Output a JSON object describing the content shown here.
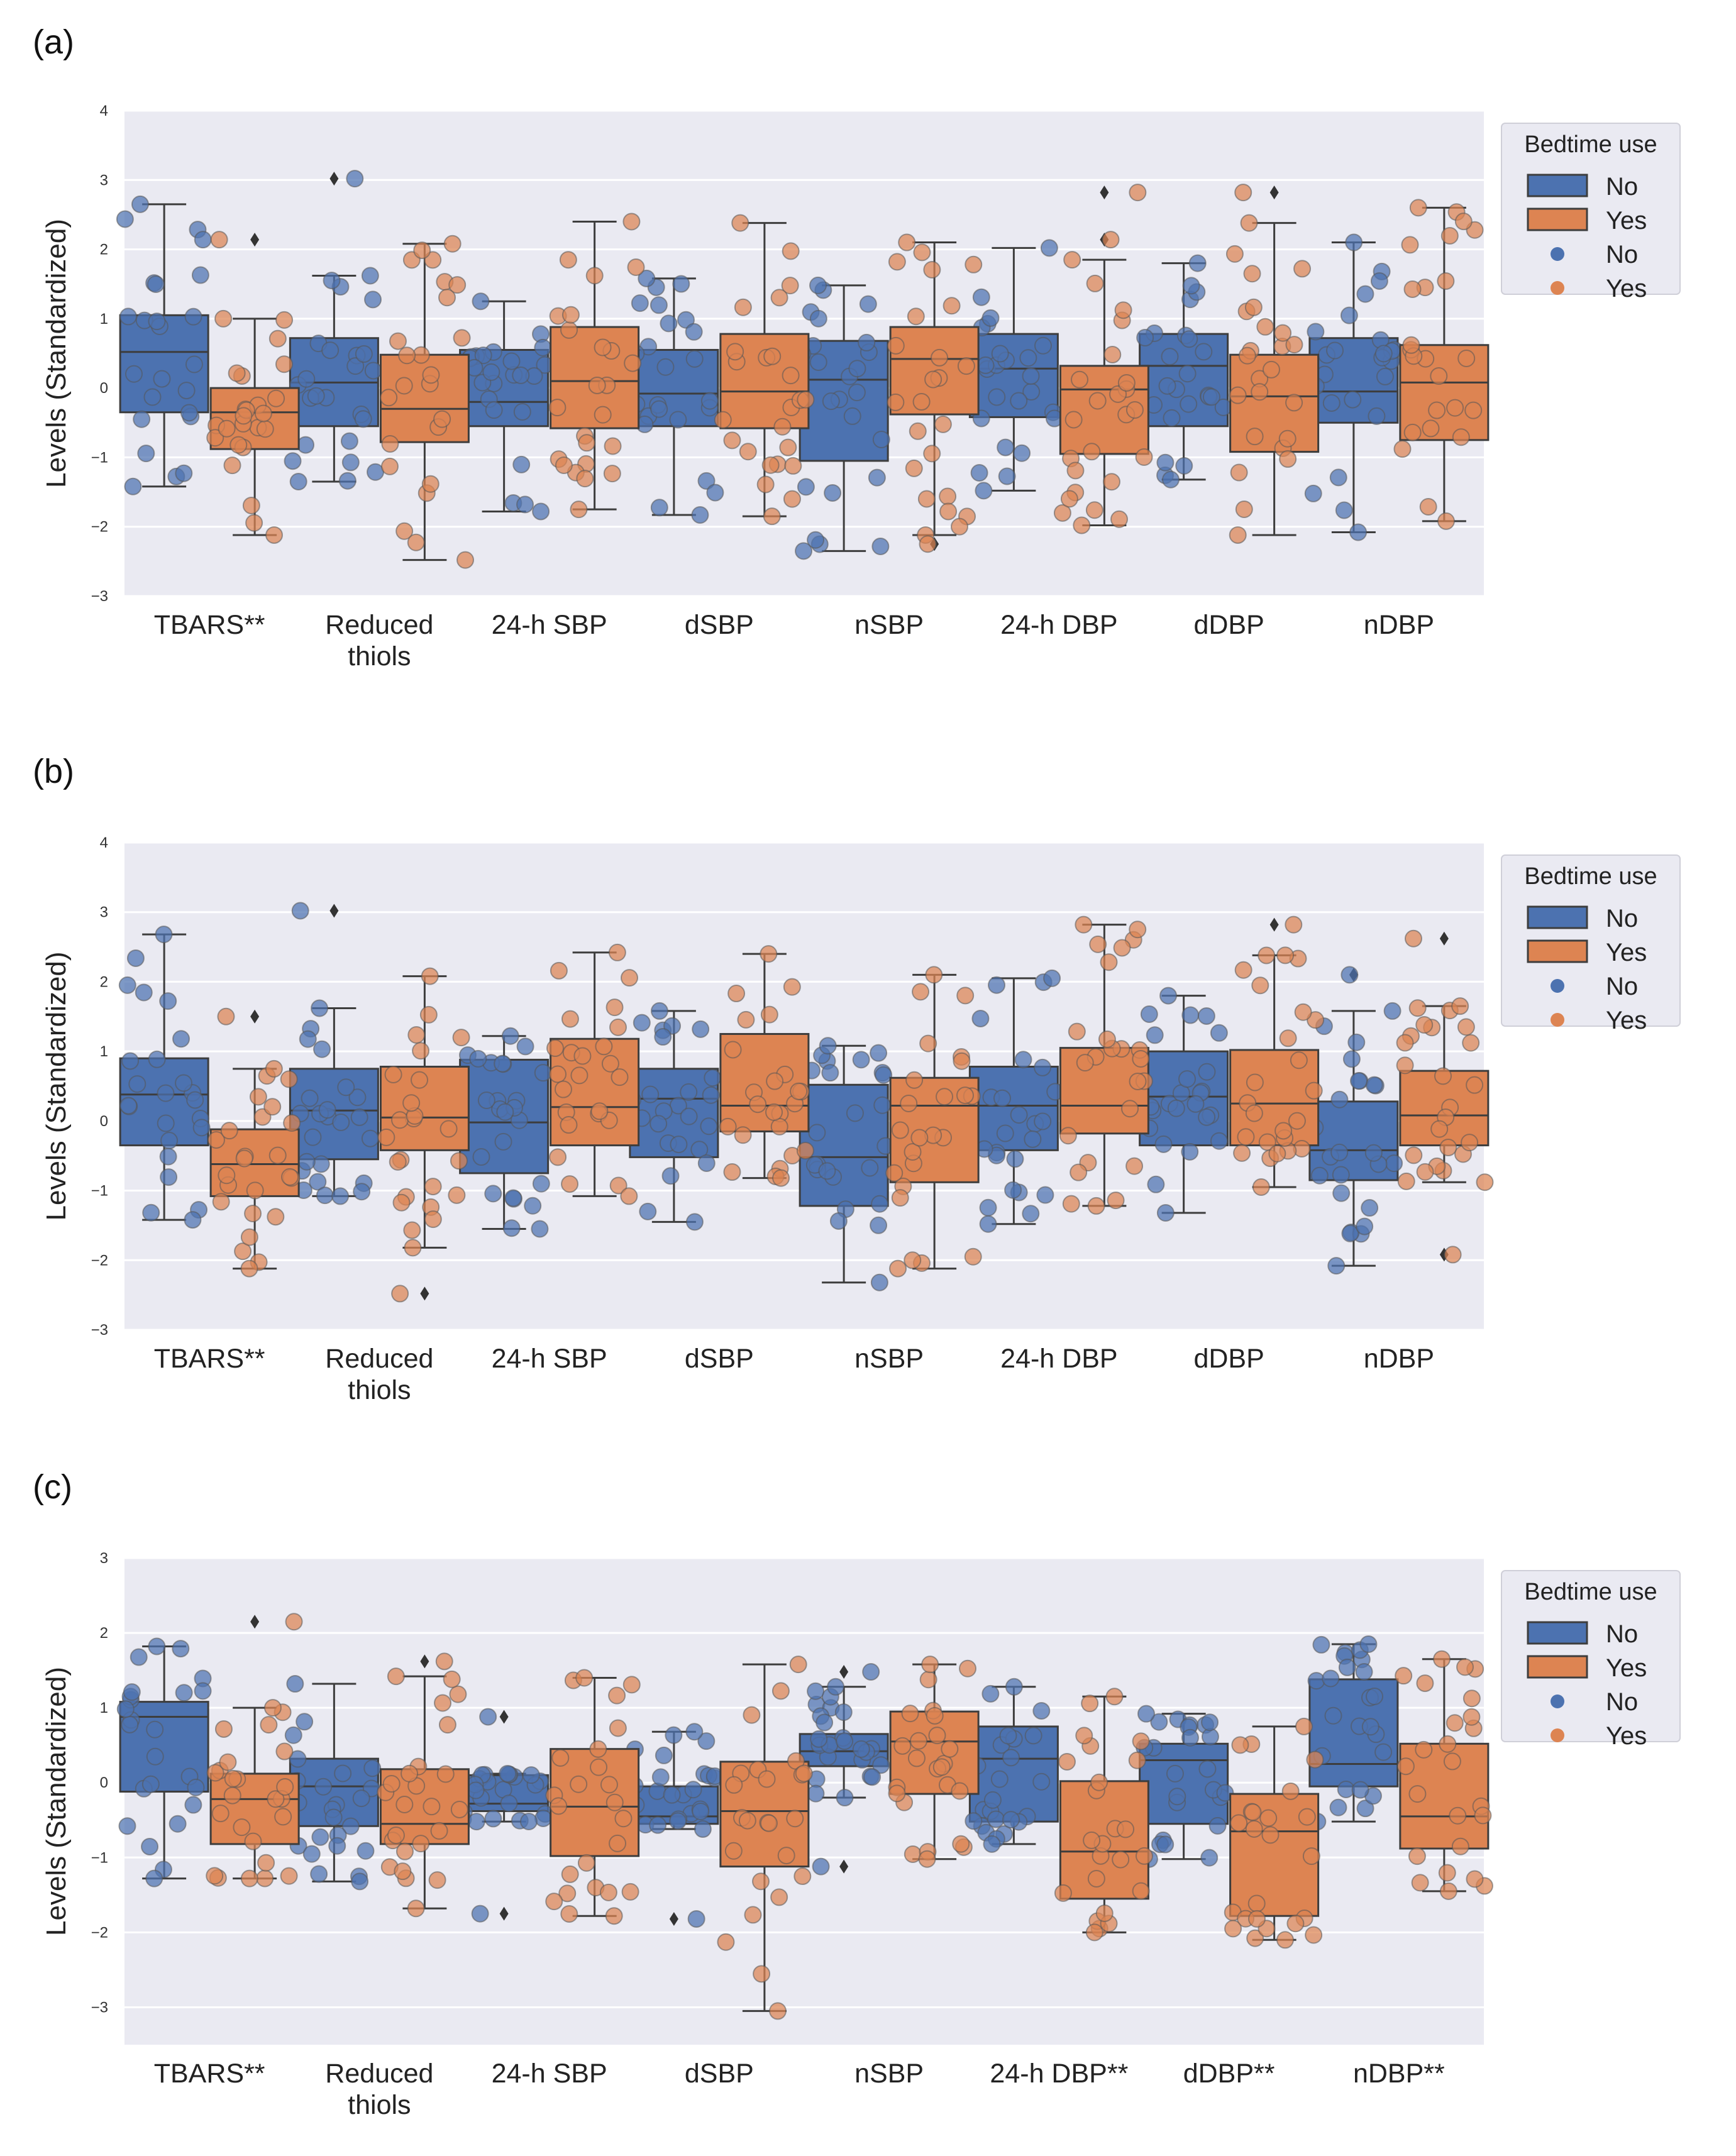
{
  "figure": {
    "legend_title": "Bedtime use",
    "legend_no": "No",
    "legend_yes": "Yes"
  },
  "colors": {
    "no": "#4c72b0",
    "yes": "#dd8452",
    "panel_bg": "#eaeaf2",
    "grid": "#ffffff",
    "line": "#3d3d3d"
  },
  "chart_data": [
    {
      "panel_label": "(a)",
      "type": "box",
      "ylabel": "Levels (Standardized)",
      "ylim": [
        -3,
        4
      ],
      "yticks": [
        4,
        3,
        2,
        1,
        0,
        -1,
        -2,
        -3
      ],
      "categories": [
        "TBARS**",
        "Reduced\nthiols",
        "24-h SBP",
        "dSBP",
        "nSBP",
        "24-h DBP",
        "dDBP",
        "nDBP"
      ],
      "series": [
        {
          "name": "No",
          "boxes": [
            {
              "q1": -0.35,
              "median": 0.52,
              "q3": 1.05,
              "whislo": -1.42,
              "whishi": 2.65,
              "fliers": []
            },
            {
              "q1": -0.55,
              "median": 0.08,
              "q3": 0.72,
              "whislo": -1.35,
              "whishi": 1.62,
              "fliers": [
                3.02
              ]
            },
            {
              "q1": -0.55,
              "median": -0.2,
              "q3": 0.55,
              "whislo": -1.78,
              "whishi": 1.25,
              "fliers": []
            },
            {
              "q1": -0.55,
              "median": -0.08,
              "q3": 0.55,
              "whislo": -1.83,
              "whishi": 1.58,
              "fliers": []
            },
            {
              "q1": -1.05,
              "median": 0.12,
              "q3": 0.68,
              "whislo": -2.35,
              "whishi": 1.48,
              "fliers": []
            },
            {
              "q1": -0.42,
              "median": 0.28,
              "q3": 0.78,
              "whislo": -1.48,
              "whishi": 2.02,
              "fliers": []
            },
            {
              "q1": -0.55,
              "median": 0.32,
              "q3": 0.78,
              "whislo": -1.32,
              "whishi": 1.8,
              "fliers": []
            },
            {
              "q1": -0.5,
              "median": -0.05,
              "q3": 0.72,
              "whislo": -2.08,
              "whishi": 2.1,
              "fliers": []
            }
          ]
        },
        {
          "name": "Yes",
          "boxes": [
            {
              "q1": -0.88,
              "median": -0.35,
              "q3": 0.0,
              "whislo": -2.12,
              "whishi": 1.0,
              "fliers": [
                2.14
              ]
            },
            {
              "q1": -0.78,
              "median": -0.3,
              "q3": 0.48,
              "whislo": -2.48,
              "whishi": 2.08,
              "fliers": []
            },
            {
              "q1": -0.58,
              "median": 0.1,
              "q3": 0.88,
              "whislo": -1.75,
              "whishi": 2.4,
              "fliers": []
            },
            {
              "q1": -0.58,
              "median": -0.05,
              "q3": 0.78,
              "whislo": -1.85,
              "whishi": 2.38,
              "fliers": []
            },
            {
              "q1": -0.38,
              "median": 0.42,
              "q3": 0.88,
              "whislo": -2.12,
              "whishi": 2.1,
              "fliers": [
                -2.25
              ]
            },
            {
              "q1": -0.95,
              "median": -0.02,
              "q3": 0.32,
              "whislo": -1.98,
              "whishi": 1.85,
              "fliers": [
                2.14,
                2.82
              ]
            },
            {
              "q1": -0.92,
              "median": -0.12,
              "q3": 0.48,
              "whislo": -2.12,
              "whishi": 2.38,
              "fliers": [
                2.82
              ]
            },
            {
              "q1": -0.75,
              "median": 0.08,
              "q3": 0.62,
              "whislo": -1.92,
              "whishi": 2.6,
              "fliers": []
            }
          ]
        }
      ]
    },
    {
      "panel_label": "(b)",
      "type": "box",
      "ylabel": "Levels (Standardized)",
      "ylim": [
        -3,
        4
      ],
      "yticks": [
        4,
        3,
        2,
        1,
        0,
        -1,
        -2,
        -3
      ],
      "categories": [
        "TBARS**",
        "Reduced\nthiols",
        "24-h SBP",
        "dSBP",
        "nSBP",
        "24-h DBP",
        "dDBP",
        "nDBP"
      ],
      "series": [
        {
          "name": "No",
          "boxes": [
            {
              "q1": -0.35,
              "median": 0.38,
              "q3": 0.9,
              "whislo": -1.42,
              "whishi": 2.68,
              "fliers": []
            },
            {
              "q1": -0.55,
              "median": 0.15,
              "q3": 0.75,
              "whislo": -1.08,
              "whishi": 1.62,
              "fliers": [
                3.02
              ]
            },
            {
              "q1": -0.75,
              "median": -0.02,
              "q3": 0.88,
              "whislo": -1.55,
              "whishi": 1.22,
              "fliers": []
            },
            {
              "q1": -0.52,
              "median": 0.32,
              "q3": 0.75,
              "whislo": -1.45,
              "whishi": 1.58,
              "fliers": []
            },
            {
              "q1": -1.22,
              "median": -0.52,
              "q3": 0.52,
              "whislo": -2.32,
              "whishi": 1.08,
              "fliers": []
            },
            {
              "q1": -0.42,
              "median": 0.22,
              "q3": 0.78,
              "whislo": -1.48,
              "whishi": 2.05,
              "fliers": []
            },
            {
              "q1": -0.35,
              "median": 0.35,
              "q3": 1.0,
              "whislo": -1.32,
              "whishi": 1.8,
              "fliers": []
            },
            {
              "q1": -0.85,
              "median": -0.42,
              "q3": 0.28,
              "whislo": -2.08,
              "whishi": 1.58,
              "fliers": [
                2.1
              ]
            }
          ]
        },
        {
          "name": "Yes",
          "boxes": [
            {
              "q1": -1.08,
              "median": -0.62,
              "q3": -0.12,
              "whislo": -2.12,
              "whishi": 0.75,
              "fliers": [
                1.5
              ]
            },
            {
              "q1": -0.42,
              "median": 0.05,
              "q3": 0.78,
              "whislo": -1.82,
              "whishi": 2.08,
              "fliers": [
                -2.48
              ]
            },
            {
              "q1": -0.35,
              "median": 0.2,
              "q3": 1.18,
              "whislo": -1.08,
              "whishi": 2.42,
              "fliers": []
            },
            {
              "q1": -0.15,
              "median": 0.22,
              "q3": 1.25,
              "whislo": -0.82,
              "whishi": 2.4,
              "fliers": []
            },
            {
              "q1": -0.88,
              "median": 0.22,
              "q3": 0.62,
              "whislo": -2.12,
              "whishi": 2.1,
              "fliers": []
            },
            {
              "q1": -0.18,
              "median": 0.22,
              "q3": 1.05,
              "whislo": -1.22,
              "whishi": 2.82,
              "fliers": []
            },
            {
              "q1": -0.35,
              "median": 0.25,
              "q3": 1.02,
              "whislo": -0.95,
              "whishi": 2.38,
              "fliers": [
                2.82
              ]
            },
            {
              "q1": -0.35,
              "median": 0.08,
              "q3": 0.72,
              "whislo": -0.88,
              "whishi": 1.65,
              "fliers": [
                2.62,
                -1.92
              ]
            }
          ]
        }
      ]
    },
    {
      "panel_label": "(c)",
      "type": "box",
      "ylabel": "Levels (Standardized)",
      "ylim": [
        -3.5,
        3
      ],
      "yticks": [
        3,
        2,
        1,
        0,
        -1,
        -2,
        -3
      ],
      "categories": [
        "TBARS**",
        "Reduced\nthiols",
        "24-h SBP",
        "dSBP",
        "nSBP",
        "24-h DBP**",
        "dDBP**",
        "nDBP**"
      ],
      "series": [
        {
          "name": "No",
          "boxes": [
            {
              "q1": -0.12,
              "median": 0.88,
              "q3": 1.08,
              "whislo": -1.28,
              "whishi": 1.82,
              "fliers": []
            },
            {
              "q1": -0.58,
              "median": -0.05,
              "q3": 0.32,
              "whislo": -1.32,
              "whishi": 1.32,
              "fliers": []
            },
            {
              "q1": -0.38,
              "median": -0.28,
              "q3": 0.1,
              "whislo": -0.52,
              "whishi": 0.12,
              "fliers": [
                0.88,
                -1.75
              ]
            },
            {
              "q1": -0.55,
              "median": -0.45,
              "q3": -0.05,
              "whislo": -0.62,
              "whishi": 0.68,
              "fliers": [
                -1.82
              ]
            },
            {
              "q1": 0.22,
              "median": 0.42,
              "q3": 0.65,
              "whislo": -0.2,
              "whishi": 1.28,
              "fliers": [
                1.48,
                -1.12
              ]
            },
            {
              "q1": -0.52,
              "median": 0.32,
              "q3": 0.75,
              "whislo": -0.82,
              "whishi": 1.28,
              "fliers": []
            },
            {
              "q1": -0.55,
              "median": 0.3,
              "q3": 0.52,
              "whislo": -1.02,
              "whishi": 0.92,
              "fliers": []
            },
            {
              "q1": -0.05,
              "median": 0.25,
              "q3": 1.38,
              "whislo": -0.52,
              "whishi": 1.85,
              "fliers": []
            }
          ]
        },
        {
          "name": "Yes",
          "boxes": [
            {
              "q1": -0.82,
              "median": -0.22,
              "q3": 0.12,
              "whislo": -1.28,
              "whishi": 1.0,
              "fliers": [
                2.15
              ]
            },
            {
              "q1": -0.82,
              "median": -0.55,
              "q3": 0.18,
              "whislo": -1.68,
              "whishi": 1.42,
              "fliers": [
                1.62
              ]
            },
            {
              "q1": -0.98,
              "median": -0.32,
              "q3": 0.45,
              "whislo": -1.78,
              "whishi": 1.4,
              "fliers": []
            },
            {
              "q1": -1.12,
              "median": -0.38,
              "q3": 0.28,
              "whislo": -3.05,
              "whishi": 1.58,
              "fliers": []
            },
            {
              "q1": -0.15,
              "median": 0.55,
              "q3": 0.95,
              "whislo": -1.02,
              "whishi": 1.58,
              "fliers": []
            },
            {
              "q1": -1.55,
              "median": -0.92,
              "q3": 0.02,
              "whislo": -2.0,
              "whishi": 1.15,
              "fliers": []
            },
            {
              "q1": -1.78,
              "median": -0.65,
              "q3": -0.15,
              "whislo": -2.1,
              "whishi": 0.75,
              "fliers": []
            },
            {
              "q1": -0.88,
              "median": -0.45,
              "q3": 0.52,
              "whislo": -1.45,
              "whishi": 1.65,
              "fliers": []
            }
          ]
        }
      ]
    }
  ]
}
